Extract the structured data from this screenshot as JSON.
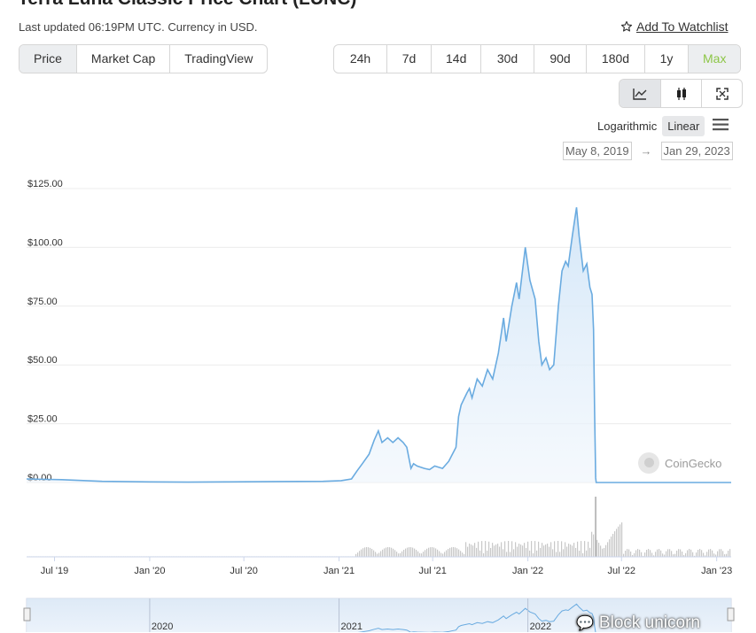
{
  "header": {
    "title": "Terra Luna Classic Price Chart (LUNC)",
    "subtitle": "Last updated 06:19PM UTC. Currency in USD.",
    "watchlist_label": "Add To Watchlist"
  },
  "chart_types": {
    "items": [
      "Price",
      "Market Cap",
      "TradingView"
    ],
    "active": "Price"
  },
  "ranges": {
    "items": [
      "24h",
      "7d",
      "14d",
      "30d",
      "90d",
      "180d",
      "1y",
      "Max"
    ],
    "active": "Max"
  },
  "view_modes": [
    "line-chart-icon",
    "candlestick-icon",
    "fullscreen-icon"
  ],
  "scale": {
    "logarithmic": "Logarithmic",
    "linear": "Linear",
    "active": "Linear"
  },
  "date_range": {
    "from": "May 8, 2019",
    "to": "Jan 29, 2023"
  },
  "watermark": "CoinGecko",
  "overlay_text": "Block unicorn",
  "colors": {
    "line": "#6aabe0",
    "fill": "#e6f1fb",
    "active_range": "#8dc647",
    "volume": "#c8c8c8"
  },
  "chart_data": {
    "type": "area",
    "ylabel": "",
    "xlabel": "",
    "ylim": [
      0,
      125
    ],
    "y_ticks": [
      "$125.00",
      "$100.00",
      "$75.00",
      "$50.00",
      "$25.00",
      "$0.00"
    ],
    "y_tick_values": [
      125,
      100,
      75,
      50,
      25,
      0
    ],
    "x_ticks": [
      "Jul '19",
      "Jan '20",
      "Jul '20",
      "Jan '21",
      "Jul '21",
      "Jan '22",
      "Jul '22",
      "Jan '23"
    ],
    "x_tick_dates": [
      "2019-07-01",
      "2020-01-01",
      "2020-07-01",
      "2021-01-01",
      "2021-07-01",
      "2022-01-01",
      "2022-07-01",
      "2023-01-01"
    ],
    "navigator_labels": [
      "2020",
      "2021",
      "2022"
    ],
    "navigator_label_dates": [
      "2020-01-01",
      "2021-01-01",
      "2022-01-01"
    ],
    "x_range": [
      "2019-05-08",
      "2023-01-29"
    ],
    "series": [
      {
        "points": [
          [
            "2019-05-08",
            1.5
          ],
          [
            "2019-07-15",
            1.2
          ],
          [
            "2019-10-01",
            0.5
          ],
          [
            "2020-01-01",
            0.25
          ],
          [
            "2020-03-15",
            0.15
          ],
          [
            "2020-06-01",
            0.25
          ],
          [
            "2020-09-01",
            0.4
          ],
          [
            "2020-12-01",
            0.5
          ],
          [
            "2021-01-05",
            0.8
          ],
          [
            "2021-01-25",
            1.5
          ],
          [
            "2021-02-05",
            5
          ],
          [
            "2021-02-15",
            8
          ],
          [
            "2021-02-28",
            12
          ],
          [
            "2021-03-10",
            18
          ],
          [
            "2021-03-18",
            22
          ],
          [
            "2021-03-25",
            17
          ],
          [
            "2021-04-05",
            19
          ],
          [
            "2021-04-15",
            17
          ],
          [
            "2021-04-25",
            19
          ],
          [
            "2021-05-05",
            17
          ],
          [
            "2021-05-12",
            15
          ],
          [
            "2021-05-20",
            6
          ],
          [
            "2021-05-25",
            8
          ],
          [
            "2021-06-01",
            7
          ],
          [
            "2021-06-15",
            6
          ],
          [
            "2021-06-25",
            5.5
          ],
          [
            "2021-07-05",
            7
          ],
          [
            "2021-07-20",
            6
          ],
          [
            "2021-08-01",
            9
          ],
          [
            "2021-08-15",
            15
          ],
          [
            "2021-08-20",
            28
          ],
          [
            "2021-08-25",
            33
          ],
          [
            "2021-09-05",
            38
          ],
          [
            "2021-09-10",
            40
          ],
          [
            "2021-09-15",
            36
          ],
          [
            "2021-09-25",
            44
          ],
          [
            "2021-10-05",
            41
          ],
          [
            "2021-10-15",
            48
          ],
          [
            "2021-10-25",
            44
          ],
          [
            "2021-11-05",
            55
          ],
          [
            "2021-11-15",
            70
          ],
          [
            "2021-11-20",
            60
          ],
          [
            "2021-12-01",
            75
          ],
          [
            "2021-12-10",
            85
          ],
          [
            "2021-12-15",
            78
          ],
          [
            "2021-12-27",
            100
          ],
          [
            "2022-01-05",
            86
          ],
          [
            "2022-01-15",
            78
          ],
          [
            "2022-01-22",
            60
          ],
          [
            "2022-01-28",
            50
          ],
          [
            "2022-02-05",
            53
          ],
          [
            "2022-02-12",
            48
          ],
          [
            "2022-02-20",
            50
          ],
          [
            "2022-03-01",
            75
          ],
          [
            "2022-03-08",
            90
          ],
          [
            "2022-03-15",
            94
          ],
          [
            "2022-03-20",
            92
          ],
          [
            "2022-03-28",
            105
          ],
          [
            "2022-04-05",
            117
          ],
          [
            "2022-04-10",
            105
          ],
          [
            "2022-04-18",
            90
          ],
          [
            "2022-04-25",
            93
          ],
          [
            "2022-05-01",
            83
          ],
          [
            "2022-05-05",
            80
          ],
          [
            "2022-05-08",
            65
          ],
          [
            "2022-05-10",
            30
          ],
          [
            "2022-05-12",
            2
          ],
          [
            "2022-05-13",
            0.0002
          ],
          [
            "2022-08-01",
            0.0002
          ],
          [
            "2022-11-01",
            0.0002
          ],
          [
            "2023-01-29",
            0.0002
          ]
        ]
      }
    ]
  }
}
